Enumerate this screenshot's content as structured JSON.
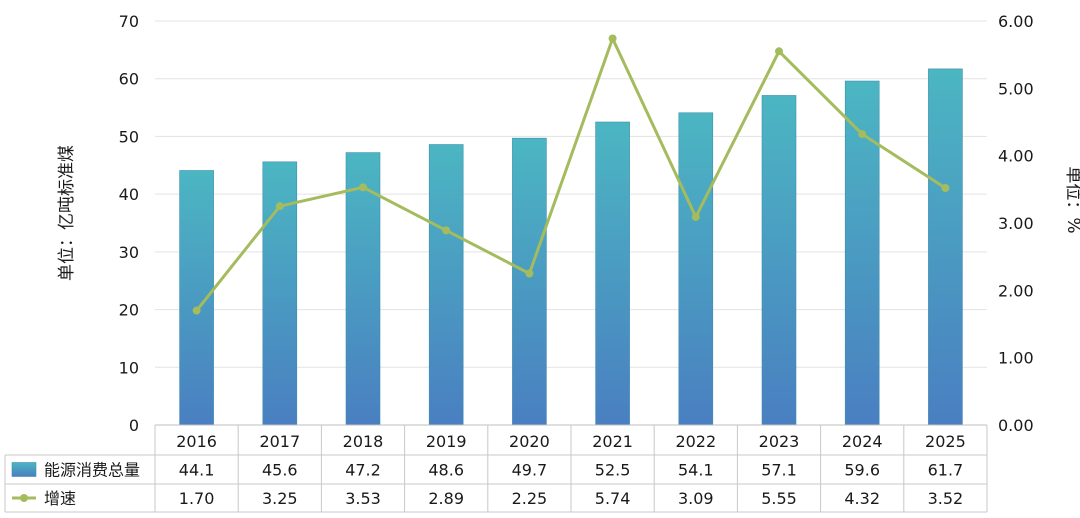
{
  "chart_data": {
    "type": "bar",
    "categories": [
      "2016",
      "2017",
      "2018",
      "2019",
      "2020",
      "2021",
      "2022",
      "2023",
      "2024",
      "2025"
    ],
    "series": [
      {
        "name": "能源消费总量",
        "type": "bar",
        "axis": "left",
        "values": [
          44.1,
          45.6,
          47.2,
          48.6,
          49.7,
          52.5,
          54.1,
          57.1,
          59.6,
          61.7
        ],
        "value_labels": [
          "44.1",
          "45.6",
          "47.2",
          "48.6",
          "49.7",
          "52.5",
          "54.1",
          "57.1",
          "59.6",
          "61.7"
        ]
      },
      {
        "name": "增速",
        "type": "line",
        "axis": "right",
        "values": [
          1.7,
          3.25,
          3.53,
          2.89,
          2.25,
          5.74,
          3.09,
          5.55,
          4.32,
          3.52
        ],
        "value_labels": [
          "1.70",
          "3.25",
          "3.53",
          "2.89",
          "2.25",
          "5.74",
          "3.09",
          "5.55",
          "4.32",
          "3.52"
        ]
      }
    ],
    "ylabel": "单位：亿吨标准煤",
    "ylabel_right": "单位：%",
    "ylim": [
      0,
      70
    ],
    "ylim_right": [
      0,
      6
    ],
    "yticks": [
      "0",
      "10",
      "20",
      "30",
      "40",
      "50",
      "60",
      "70"
    ],
    "yticks_right": [
      "0.00",
      "1.00",
      "2.00",
      "3.00",
      "4.00",
      "5.00",
      "6.00"
    ],
    "grid": true,
    "legend": "data-table-bottom",
    "colors": {
      "bar_top": "#4bb6c2",
      "bar_bottom": "#4a7fc1",
      "line": "#a4bb5e"
    }
  }
}
